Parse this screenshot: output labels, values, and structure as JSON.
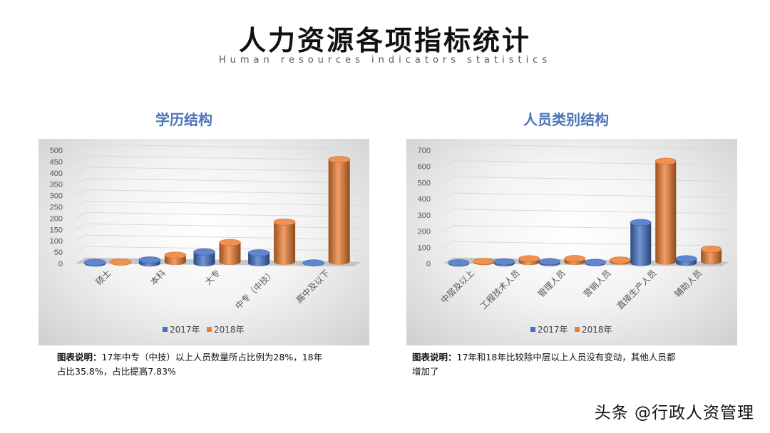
{
  "header": {
    "title": "人力资源各项指标统计",
    "subtitle": "Human resources indicators statistics"
  },
  "chart_data": [
    {
      "type": "bar",
      "title": "学历结构",
      "categories": [
        "硕士",
        "本科",
        "大专",
        "中专（中技）",
        "高中及以下"
      ],
      "series": [
        {
          "name": "2017年",
          "values": [
            5,
            15,
            50,
            45,
            0
          ]
        },
        {
          "name": "2018年",
          "values": [
            0,
            30,
            85,
            175,
            450
          ]
        }
      ],
      "ylim": [
        0,
        500
      ],
      "yticks": [
        "500",
        "450",
        "400",
        "350",
        "300",
        "250",
        "200",
        "150",
        "100",
        "50",
        "0"
      ],
      "legend": "bottom",
      "colors": [
        "#4472c4",
        "#ed7d31"
      ]
    },
    {
      "type": "bar",
      "title": "人员类别结构",
      "categories": [
        "中层及以上",
        "工程技术人员",
        "管理人员",
        "营销人员",
        "直接生产人员",
        "辅助人员"
      ],
      "series": [
        {
          "name": "2017年",
          "values": [
            5,
            10,
            10,
            5,
            250,
            25
          ]
        },
        {
          "name": "2018年",
          "values": [
            5,
            20,
            20,
            10,
            620,
            75
          ]
        }
      ],
      "ylim": [
        0,
        700
      ],
      "yticks": [
        "700",
        "600",
        "500",
        "400",
        "300",
        "200",
        "100",
        "0"
      ],
      "legend": "bottom",
      "colors": [
        "#4472c4",
        "#ed7d31"
      ]
    }
  ],
  "captions": [
    {
      "label": "图表说明：",
      "line1": "17年中专（中技）以上人员数量所占比例为28%，18年",
      "line2": "占比35.8%，占比提高7.83%"
    },
    {
      "label": "图表说明：",
      "line1": "17年和18年比较除中层以上人员没有变动，其他人员都",
      "line2": "增加了"
    }
  ],
  "watermark": "头条 @行政人资管理"
}
